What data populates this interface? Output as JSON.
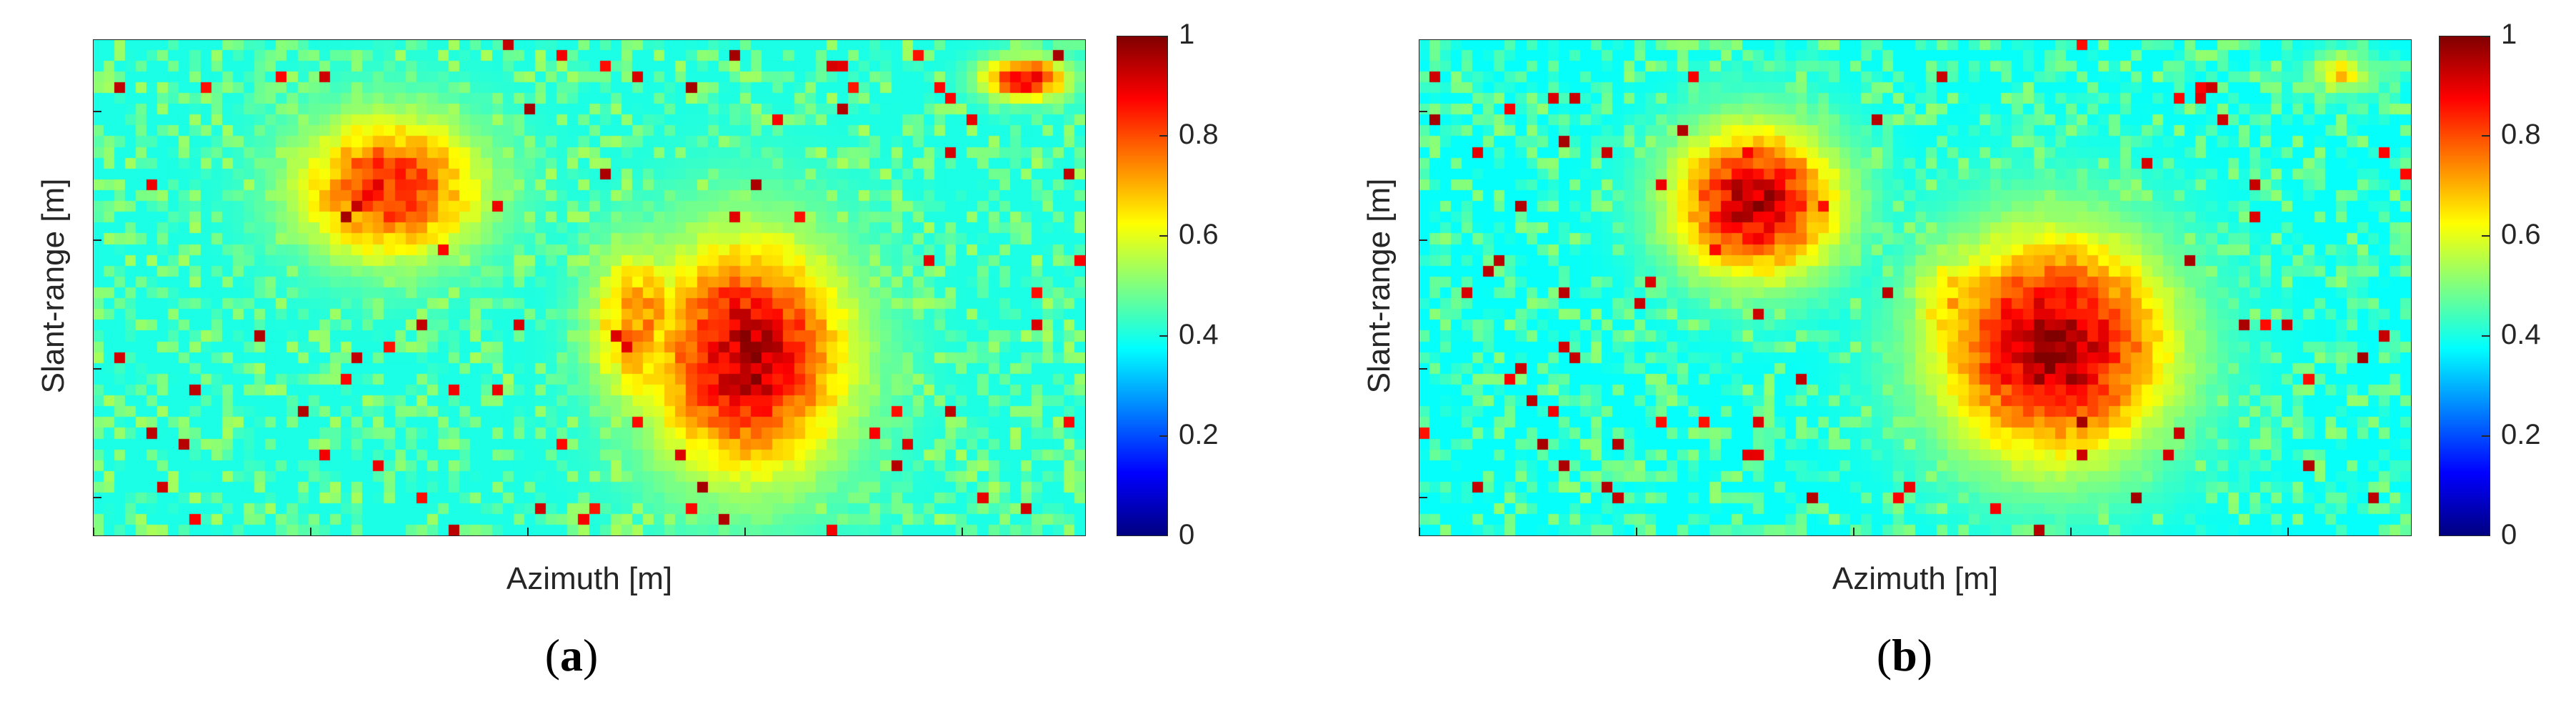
{
  "chart_data": [
    {
      "type": "heatmap",
      "panel_label": "a",
      "xlabel": "Azimuth [m]",
      "ylabel": "Slant-range [m]",
      "colormap": "jet",
      "clim": [
        0,
        1
      ],
      "colorbar_ticks": [
        "0",
        "0.2",
        "0.4",
        "0.6",
        "0.8",
        "1"
      ],
      "grid": false,
      "hotspots": [
        {
          "region": "upper-left",
          "cx": 0.3,
          "cy": 0.3,
          "rx": 0.11,
          "ry": 0.17,
          "value": 0.85
        },
        {
          "region": "center-right",
          "cx": 0.66,
          "cy": 0.64,
          "rx": 0.12,
          "ry": 0.28,
          "value": 0.95
        },
        {
          "region": "center",
          "cx": 0.55,
          "cy": 0.58,
          "rx": 0.06,
          "ry": 0.2,
          "value": 0.75
        },
        {
          "region": "top-right",
          "cx": 0.94,
          "cy": 0.08,
          "rx": 0.05,
          "ry": 0.05,
          "value": 0.9
        }
      ],
      "background_level": 0.4
    },
    {
      "type": "heatmap",
      "panel_label": "b",
      "xlabel": "Azimuth [m]",
      "ylabel": "Slant-range [m]",
      "colormap": "jet",
      "clim": [
        0,
        1
      ],
      "colorbar_ticks": [
        "0",
        "0.2",
        "0.4",
        "0.6",
        "0.8",
        "1"
      ],
      "grid": false,
      "hotspots": [
        {
          "region": "upper-left",
          "cx": 0.34,
          "cy": 0.33,
          "rx": 0.1,
          "ry": 0.18,
          "value": 0.95
        },
        {
          "region": "center-right",
          "cx": 0.64,
          "cy": 0.62,
          "rx": 0.14,
          "ry": 0.27,
          "value": 0.97
        },
        {
          "region": "center",
          "cx": 0.55,
          "cy": 0.55,
          "rx": 0.07,
          "ry": 0.18,
          "value": 0.7
        },
        {
          "region": "top-right",
          "cx": 0.93,
          "cy": 0.07,
          "rx": 0.04,
          "ry": 0.05,
          "value": 0.65
        }
      ],
      "background_level": 0.38
    }
  ],
  "captions": {
    "a": {
      "open": "(",
      "letter": "a",
      "close": ")"
    },
    "b": {
      "open": "(",
      "letter": "b",
      "close": ")"
    }
  }
}
